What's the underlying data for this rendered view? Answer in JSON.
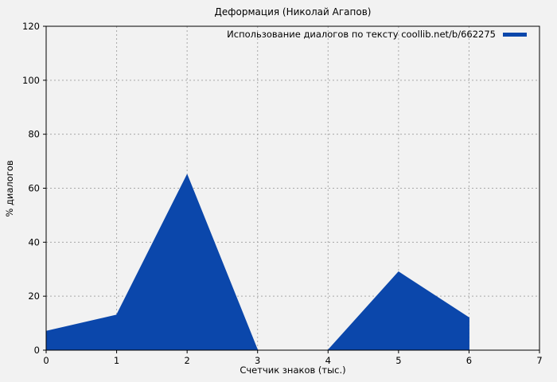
{
  "title": "Деформация (Николай Агапов)",
  "legend": {
    "label": "Использование диалогов по тексту coollib.net/b/662275",
    "swatch": "blue-line-swatch"
  },
  "colors": {
    "fill": "#0b47ab",
    "grid": "#a8a8a8",
    "background": "#f2f2f2",
    "border": "#000000",
    "text": "#000000"
  },
  "chart_data": {
    "type": "area",
    "title": "Деформация (Николай Агапов)",
    "xlabel": "Счетчик знаков (тыс.)",
    "ylabel": "% диалогов",
    "xlim": [
      0,
      7
    ],
    "ylim": [
      0,
      120
    ],
    "xticks": [
      0,
      1,
      2,
      3,
      4,
      5,
      6,
      7
    ],
    "yticks": [
      0,
      20,
      40,
      60,
      80,
      100,
      120
    ],
    "grid": true,
    "grid_style": "dashed",
    "legend_position": "top-right-inside",
    "series": [
      {
        "name": "Использование диалогов по тексту coollib.net/b/662275",
        "color": "#0b47ab",
        "points": [
          [
            0,
            7
          ],
          [
            1,
            13
          ],
          [
            2,
            65
          ],
          [
            3,
            0
          ],
          [
            4,
            0
          ],
          [
            5,
            29
          ],
          [
            6,
            12
          ]
        ]
      }
    ]
  }
}
